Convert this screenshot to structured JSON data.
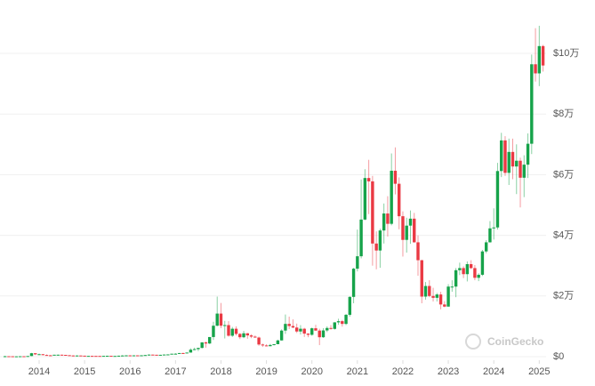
{
  "chart_data": {
    "type": "candlestick",
    "watermark": "CoinGecko",
    "up_color": "#16a34a",
    "down_color": "#ea3943",
    "grid": true,
    "ylim": [
      0,
      117000
    ],
    "yticks": [
      {
        "value": 0,
        "label": "$0"
      },
      {
        "value": 20000,
        "label": "$2万"
      },
      {
        "value": 40000,
        "label": "$4万"
      },
      {
        "value": 60000,
        "label": "$6万"
      },
      {
        "value": 80000,
        "label": "$8万"
      },
      {
        "value": 100000,
        "label": "$10万"
      }
    ],
    "xticks": [
      {
        "value": "2014-01",
        "label": "2014"
      },
      {
        "value": "2015-01",
        "label": "2015"
      },
      {
        "value": "2016-01",
        "label": "2016"
      },
      {
        "value": "2017-01",
        "label": "2017"
      },
      {
        "value": "2018-01",
        "label": "2018"
      },
      {
        "value": "2019-01",
        "label": "2019"
      },
      {
        "value": "2020-01",
        "label": "2020"
      },
      {
        "value": "2021-01",
        "label": "2021"
      },
      {
        "value": "2022-01",
        "label": "2022"
      },
      {
        "value": "2023-01",
        "label": "2023"
      },
      {
        "value": "2024-01",
        "label": "2024"
      },
      {
        "value": "2025-01",
        "label": "2025"
      }
    ],
    "x": [
      "2013-04",
      "2013-05",
      "2013-06",
      "2013-07",
      "2013-08",
      "2013-09",
      "2013-10",
      "2013-11",
      "2013-12",
      "2014-01",
      "2014-02",
      "2014-03",
      "2014-04",
      "2014-05",
      "2014-06",
      "2014-07",
      "2014-08",
      "2014-09",
      "2014-10",
      "2014-11",
      "2014-12",
      "2015-01",
      "2015-02",
      "2015-03",
      "2015-04",
      "2015-05",
      "2015-06",
      "2015-07",
      "2015-08",
      "2015-09",
      "2015-10",
      "2015-11",
      "2015-12",
      "2016-01",
      "2016-02",
      "2016-03",
      "2016-04",
      "2016-05",
      "2016-06",
      "2016-07",
      "2016-08",
      "2016-09",
      "2016-10",
      "2016-11",
      "2016-12",
      "2017-01",
      "2017-02",
      "2017-03",
      "2017-04",
      "2017-05",
      "2017-06",
      "2017-07",
      "2017-08",
      "2017-09",
      "2017-10",
      "2017-11",
      "2017-12",
      "2018-01",
      "2018-02",
      "2018-03",
      "2018-04",
      "2018-05",
      "2018-06",
      "2018-07",
      "2018-08",
      "2018-09",
      "2018-10",
      "2018-11",
      "2018-12",
      "2019-01",
      "2019-02",
      "2019-03",
      "2019-04",
      "2019-05",
      "2019-06",
      "2019-07",
      "2019-08",
      "2019-09",
      "2019-10",
      "2019-11",
      "2019-12",
      "2020-01",
      "2020-02",
      "2020-03",
      "2020-04",
      "2020-05",
      "2020-06",
      "2020-07",
      "2020-08",
      "2020-09",
      "2020-10",
      "2020-11",
      "2020-12",
      "2021-01",
      "2021-02",
      "2021-03",
      "2021-04",
      "2021-05",
      "2021-06",
      "2021-07",
      "2021-08",
      "2021-09",
      "2021-10",
      "2021-11",
      "2021-12",
      "2022-01",
      "2022-02",
      "2022-03",
      "2022-04",
      "2022-05",
      "2022-06",
      "2022-07",
      "2022-08",
      "2022-09",
      "2022-10",
      "2022-11",
      "2022-12",
      "2023-01",
      "2023-02",
      "2023-03",
      "2023-04",
      "2023-05",
      "2023-06",
      "2023-07",
      "2023-08",
      "2023-09",
      "2023-10",
      "2023-11",
      "2023-12",
      "2024-01",
      "2024-02",
      "2024-03",
      "2024-04",
      "2024-05",
      "2024-06",
      "2024-07",
      "2024-08",
      "2024-09",
      "2024-10",
      "2024-11",
      "2024-12",
      "2025-01",
      "2025-02"
    ],
    "ohlc": [
      [
        93,
        266,
        50,
        139
      ],
      [
        139,
        140,
        80,
        129
      ],
      [
        129,
        130,
        88,
        97
      ],
      [
        97,
        111,
        65,
        106
      ],
      [
        106,
        135,
        100,
        135
      ],
      [
        135,
        146,
        118,
        133
      ],
      [
        133,
        211,
        108,
        204
      ],
      [
        204,
        1242,
        200,
        1130
      ],
      [
        1130,
        1156,
        520,
        754
      ],
      [
        754,
        1010,
        750,
        801
      ],
      [
        801,
        860,
        420,
        550
      ],
      [
        550,
        720,
        440,
        458
      ],
      [
        458,
        550,
        340,
        448
      ],
      [
        448,
        640,
        430,
        628
      ],
      [
        628,
        680,
        560,
        641
      ],
      [
        641,
        660,
        565,
        585
      ],
      [
        585,
        600,
        440,
        478
      ],
      [
        478,
        490,
        370,
        389
      ],
      [
        389,
        420,
        290,
        338
      ],
      [
        338,
        460,
        325,
        378
      ],
      [
        378,
        390,
        310,
        320
      ],
      [
        320,
        320,
        160,
        220
      ],
      [
        220,
        270,
        215,
        254
      ],
      [
        254,
        300,
        240,
        244
      ],
      [
        244,
        260,
        215,
        236
      ],
      [
        236,
        245,
        225,
        230
      ],
      [
        230,
        270,
        220,
        263
      ],
      [
        263,
        320,
        255,
        284
      ],
      [
        284,
        285,
        195,
        230
      ],
      [
        230,
        260,
        225,
        236
      ],
      [
        236,
        330,
        235,
        314
      ],
      [
        314,
        500,
        300,
        377
      ],
      [
        377,
        470,
        345,
        430
      ],
      [
        430,
        460,
        350,
        368
      ],
      [
        368,
        440,
        360,
        437
      ],
      [
        437,
        440,
        400,
        416
      ],
      [
        416,
        470,
        410,
        448
      ],
      [
        448,
        550,
        440,
        531
      ],
      [
        531,
        780,
        530,
        673
      ],
      [
        673,
        700,
        600,
        624
      ],
      [
        624,
        630,
        530,
        573
      ],
      [
        573,
        630,
        570,
        609
      ],
      [
        609,
        720,
        600,
        700
      ],
      [
        700,
        750,
        690,
        742
      ],
      [
        742,
        975,
        740,
        964
      ],
      [
        964,
        1150,
        750,
        970
      ],
      [
        970,
        1210,
        910,
        1190
      ],
      [
        1190,
        1290,
        890,
        1080
      ],
      [
        1080,
        1350,
        1070,
        1350
      ],
      [
        1350,
        2760,
        1340,
        2300
      ],
      [
        2300,
        2980,
        2100,
        2480
      ],
      [
        2480,
        2920,
        1830,
        2880
      ],
      [
        2880,
        4770,
        2700,
        4700
      ],
      [
        4700,
        4980,
        2970,
        4340
      ],
      [
        4340,
        6470,
        4130,
        6470
      ],
      [
        6470,
        11500,
        5500,
        10200
      ],
      [
        10200,
        19800,
        10000,
        14200
      ],
      [
        14200,
        17700,
        9400,
        10200
      ],
      [
        10200,
        11800,
        6000,
        10400
      ],
      [
        10400,
        11700,
        6600,
        6900
      ],
      [
        6900,
        9800,
        6500,
        9200
      ],
      [
        9200,
        10000,
        7000,
        7500
      ],
      [
        7500,
        7800,
        5800,
        6400
      ],
      [
        6400,
        8500,
        6100,
        7700
      ],
      [
        7700,
        7800,
        5900,
        7000
      ],
      [
        7000,
        7400,
        6100,
        6600
      ],
      [
        6600,
        7000,
        6200,
        6300
      ],
      [
        6300,
        6600,
        3600,
        4000
      ],
      [
        4000,
        4300,
        3200,
        3700
      ],
      [
        3700,
        4100,
        3400,
        3450
      ],
      [
        3450,
        4200,
        3400,
        3850
      ],
      [
        3850,
        4100,
        3700,
        4100
      ],
      [
        4100,
        5600,
        4100,
        5350
      ],
      [
        5350,
        9000,
        5300,
        8600
      ],
      [
        8600,
        13900,
        7500,
        10800
      ],
      [
        10800,
        13200,
        9100,
        10100
      ],
      [
        10100,
        12300,
        9400,
        9600
      ],
      [
        9600,
        10900,
        7800,
        8300
      ],
      [
        8300,
        10400,
        7300,
        9200
      ],
      [
        9200,
        9500,
        6500,
        7600
      ],
      [
        7600,
        7700,
        6400,
        7200
      ],
      [
        7200,
        9600,
        6900,
        9350
      ],
      [
        9350,
        10500,
        8500,
        8600
      ],
      [
        8600,
        9200,
        3800,
        6400
      ],
      [
        6400,
        9400,
        6200,
        8650
      ],
      [
        8650,
        10000,
        8100,
        9450
      ],
      [
        9450,
        10400,
        8900,
        9150
      ],
      [
        9150,
        11400,
        8900,
        11300
      ],
      [
        11300,
        12500,
        10500,
        11700
      ],
      [
        11700,
        12100,
        9900,
        10800
      ],
      [
        10800,
        14100,
        10400,
        13800
      ],
      [
        13800,
        19900,
        13200,
        19700
      ],
      [
        19700,
        29300,
        17600,
        29000
      ],
      [
        29000,
        41900,
        28100,
        33100
      ],
      [
        33100,
        58400,
        32400,
        45200
      ],
      [
        45200,
        61800,
        45000,
        58900
      ],
      [
        58900,
        64900,
        47000,
        57800
      ],
      [
        57800,
        59600,
        30000,
        37300
      ],
      [
        37300,
        41300,
        28800,
        35000
      ],
      [
        35000,
        42200,
        29300,
        41600
      ],
      [
        41600,
        50500,
        37300,
        47200
      ],
      [
        47200,
        52900,
        39600,
        43800
      ],
      [
        43800,
        67000,
        43300,
        61300
      ],
      [
        61300,
        69000,
        53500,
        57000
      ],
      [
        57000,
        59100,
        42000,
        46300
      ],
      [
        46300,
        47900,
        33000,
        38500
      ],
      [
        38500,
        45800,
        34300,
        43200
      ],
      [
        43200,
        48200,
        37200,
        45500
      ],
      [
        45500,
        47400,
        37600,
        37700
      ],
      [
        37700,
        40000,
        26700,
        31800
      ],
      [
        31800,
        31900,
        17600,
        19800
      ],
      [
        19800,
        24600,
        18800,
        23300
      ],
      [
        23300,
        25200,
        19600,
        20000
      ],
      [
        20000,
        22700,
        18200,
        19400
      ],
      [
        19400,
        21000,
        18200,
        20500
      ],
      [
        20500,
        21400,
        15600,
        17200
      ],
      [
        17200,
        18300,
        16300,
        16500
      ],
      [
        16500,
        23900,
        16500,
        23100
      ],
      [
        23100,
        25200,
        21400,
        23100
      ],
      [
        23100,
        29200,
        19600,
        28500
      ],
      [
        28500,
        31000,
        26900,
        29200
      ],
      [
        29200,
        29800,
        25900,
        27200
      ],
      [
        27200,
        31400,
        24800,
        30500
      ],
      [
        30500,
        31800,
        28900,
        29200
      ],
      [
        29200,
        30200,
        25200,
        26000
      ],
      [
        26000,
        27500,
        24900,
        27000
      ],
      [
        27000,
        35200,
        26600,
        34700
      ],
      [
        34700,
        38400,
        34100,
        37700
      ],
      [
        37700,
        44700,
        37600,
        42300
      ],
      [
        42300,
        48900,
        38600,
        42600
      ],
      [
        42600,
        63900,
        41900,
        61200
      ],
      [
        61200,
        73800,
        59200,
        71300
      ],
      [
        71300,
        72700,
        59600,
        60600
      ],
      [
        60600,
        71900,
        56600,
        67500
      ],
      [
        67500,
        71900,
        58500,
        62700
      ],
      [
        62700,
        70000,
        53600,
        64600
      ],
      [
        64600,
        65600,
        49200,
        59000
      ],
      [
        59000,
        66400,
        52600,
        63300
      ],
      [
        63300,
        73600,
        58900,
        70200
      ],
      [
        70200,
        99600,
        66800,
        96400
      ],
      [
        96400,
        108300,
        90700,
        93400
      ],
      [
        93400,
        109100,
        89200,
        102400
      ],
      [
        102400,
        102800,
        94000,
        96000
      ]
    ]
  }
}
